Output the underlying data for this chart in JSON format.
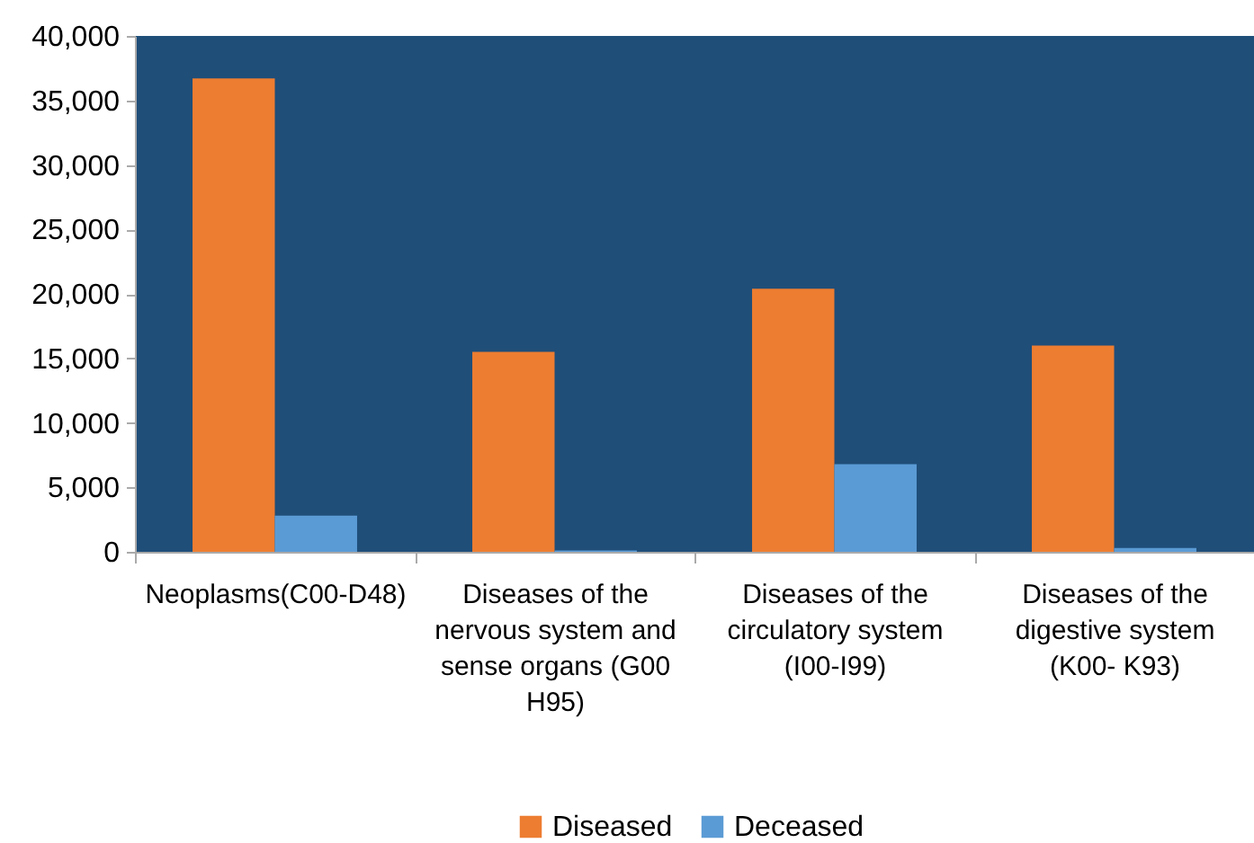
{
  "chart_data": {
    "type": "bar",
    "categories": [
      "Neoplasms(C00-D48)",
      "Diseases of the nervous system and sense organs  (G00 H95)",
      "Diseases of the circulatory system (I00-I99)",
      "Diseases of the digestive system (K00- K93)"
    ],
    "series": [
      {
        "name": "Diseased",
        "color": "#ed7d31",
        "values": [
          36700,
          15500,
          20400,
          16000
        ]
      },
      {
        "name": "Deceased",
        "color": "#5b9bd5",
        "values": [
          2800,
          100,
          6800,
          300
        ]
      }
    ],
    "ylim": [
      0,
      40000
    ],
    "yticks": [
      0,
      {
        "value": 5000,
        "label": "5,000"
      },
      {
        "value": 10000,
        "label": "10,000"
      },
      {
        "value": 15000,
        "label": "15,000"
      },
      {
        "value": 20000,
        "label": "20,000"
      },
      {
        "value": 25000,
        "label": "25,000"
      },
      {
        "value": 30000,
        "label": "30,000"
      },
      {
        "value": 35000,
        "label": "35,000"
      },
      {
        "value": 40000,
        "label": "40,000"
      }
    ],
    "grid": false,
    "legend": "bottom"
  }
}
